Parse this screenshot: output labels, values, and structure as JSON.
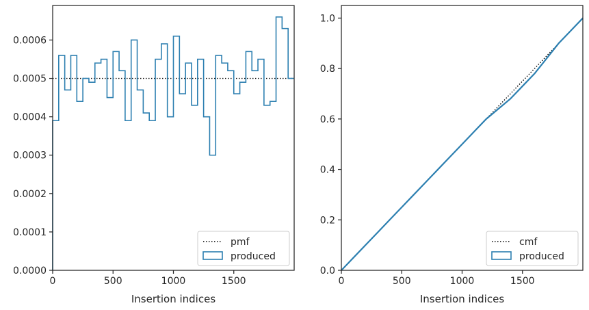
{
  "colors": {
    "produced": "#2c7fb0",
    "reference": "#000000",
    "axes": "#262626"
  },
  "chart_data": [
    {
      "type": "step",
      "xlabel": "Insertion indices",
      "ylabel": "",
      "xlim": [
        0,
        2000
      ],
      "ylim": [
        0,
        0.00069
      ],
      "xticks": [
        0,
        500,
        1000,
        1500
      ],
      "yticks": [
        0,
        0.0001,
        0.0002,
        0.0003,
        0.0004,
        0.0005,
        0.0006
      ],
      "xtick_labels": [
        "0",
        "500",
        "1000",
        "1500"
      ],
      "ytick_labels": [
        "0.0000",
        "0.0001",
        "0.0002",
        "0.0003",
        "0.0004",
        "0.0005",
        "0.0006"
      ],
      "legend_position": "lower-right",
      "legend": [
        "pmf",
        "produced"
      ],
      "series": [
        {
          "name": "pmf",
          "style": "dotted",
          "x": [
            0,
            2000
          ],
          "y": [
            0.0005,
            0.0005
          ]
        },
        {
          "name": "produced",
          "style": "histogram-step",
          "bin_width": 50,
          "values": [
            0.00039,
            0.00056,
            0.00047,
            0.00056,
            0.00044,
            0.0005,
            0.00049,
            0.00054,
            0.00055,
            0.00045,
            0.00057,
            0.00052,
            0.00039,
            0.0006,
            0.00047,
            0.00041,
            0.00039,
            0.00055,
            0.00059,
            0.0004,
            0.00061,
            0.00046,
            0.00054,
            0.00043,
            0.00055,
            0.0004,
            0.0003,
            0.00056,
            0.00054,
            0.00052,
            0.00046,
            0.00049,
            0.00057,
            0.00052,
            0.00055,
            0.00043,
            0.00044,
            0.00066,
            0.00063,
            0.0005
          ]
        }
      ]
    },
    {
      "type": "line",
      "xlabel": "Insertion indices",
      "ylabel": "",
      "xlim": [
        0,
        2000
      ],
      "ylim": [
        0,
        1.05
      ],
      "xticks": [
        0,
        500,
        1000,
        1500
      ],
      "yticks": [
        0,
        0.2,
        0.4,
        0.6,
        0.8,
        1.0
      ],
      "xtick_labels": [
        "0",
        "500",
        "1000",
        "1500"
      ],
      "ytick_labels": [
        "0.0",
        "0.2",
        "0.4",
        "0.6",
        "0.8",
        "1.0"
      ],
      "legend_position": "lower-right",
      "legend": [
        "cmf",
        "produced"
      ],
      "series": [
        {
          "name": "cmf",
          "style": "dotted",
          "x": [
            0,
            2000
          ],
          "y": [
            0,
            1.0
          ]
        },
        {
          "name": "produced",
          "style": "solid",
          "x": [
            0,
            100,
            200,
            300,
            400,
            500,
            600,
            700,
            800,
            900,
            1000,
            1100,
            1200,
            1300,
            1400,
            1500,
            1600,
            1700,
            1800,
            1900,
            2000
          ],
          "y": [
            0,
            0.05,
            0.1,
            0.15,
            0.2,
            0.25,
            0.3,
            0.35,
            0.4,
            0.45,
            0.5,
            0.55,
            0.6,
            0.64,
            0.68,
            0.73,
            0.78,
            0.84,
            0.9,
            0.95,
            1.0
          ]
        }
      ]
    }
  ]
}
